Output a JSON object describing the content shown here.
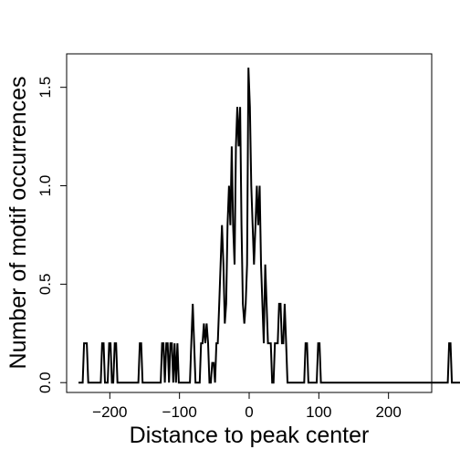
{
  "chart_data": {
    "type": "line",
    "title": "",
    "xlabel": "Distance to peak center",
    "ylabel": "Number of motif occurrences",
    "xlim": [
      -262,
      262
    ],
    "ylim": [
      -0.05,
      1.67
    ],
    "xticks": [
      -200,
      -100,
      0,
      100,
      200
    ],
    "yticks": [
      0.0,
      0.5,
      1.0,
      1.5
    ],
    "xtick_labels": [
      "−200",
      "−100",
      "0",
      "100",
      "200"
    ],
    "ytick_labels": [
      "0.0",
      "0.5",
      "1.0",
      "1.5"
    ],
    "grid": false,
    "legend": "none",
    "line_color": "#000000",
    "step": 2,
    "start_x": -245,
    "series": [
      {
        "values": [
          0,
          0,
          0,
          0,
          0.2,
          0.2,
          0.2,
          0,
          0,
          0,
          0,
          0,
          0,
          0,
          0,
          0,
          0,
          0.2,
          0.2,
          0,
          0,
          0,
          0.2,
          0.2,
          0,
          0,
          0.2,
          0.2,
          0,
          0,
          0,
          0,
          0,
          0,
          0,
          0,
          0,
          0,
          0,
          0,
          0,
          0,
          0,
          0,
          0.2,
          0.2,
          0,
          0,
          0,
          0,
          0,
          0,
          0,
          0,
          0,
          0,
          0,
          0,
          0,
          0,
          0.2,
          0.2,
          0,
          0.2,
          0.2,
          0,
          0.2,
          0.2,
          0,
          0.2,
          0,
          0.2,
          0,
          0,
          0,
          0,
          0,
          0,
          0,
          0,
          0,
          0.2,
          0.4,
          0.2,
          0,
          0,
          0,
          0,
          0.2,
          0.2,
          0.3,
          0.2,
          0.3,
          0.2,
          0,
          0,
          0.1,
          0.1,
          0,
          0.2,
          0.2,
          0.4,
          0.6,
          0.8,
          0.6,
          0.3,
          0.4,
          0.8,
          1.0,
          0.8,
          1.2,
          0.8,
          0.6,
          1.2,
          1.4,
          1.2,
          1.4,
          0.8,
          0.4,
          0.3,
          0.4,
          0.6,
          1.6,
          1.4,
          1.0,
          0.8,
          0.6,
          0.8,
          1.0,
          0.8,
          1.0,
          0.6,
          0.4,
          0.2,
          0.6,
          0.4,
          0.2,
          0.2,
          0.2,
          0,
          0,
          0.2,
          0.2,
          0.2,
          0.4,
          0.4,
          0.2,
          0.2,
          0.4,
          0.2,
          0,
          0,
          0,
          0,
          0,
          0,
          0,
          0,
          0,
          0,
          0,
          0,
          0,
          0.2,
          0.2,
          0,
          0,
          0,
          0,
          0,
          0,
          0,
          0.2,
          0.2,
          0,
          0,
          0,
          0,
          0,
          0,
          0,
          0,
          0,
          0,
          0,
          0,
          0,
          0,
          0,
          0,
          0,
          0,
          0,
          0,
          0,
          0,
          0,
          0,
          0,
          0,
          0,
          0,
          0,
          0,
          0,
          0,
          0,
          0,
          0,
          0,
          0,
          0,
          0,
          0,
          0,
          0,
          0,
          0,
          0,
          0,
          0,
          0,
          0,
          0,
          0,
          0,
          0,
          0,
          0,
          0,
          0,
          0,
          0,
          0,
          0,
          0,
          0,
          0,
          0,
          0,
          0,
          0,
          0,
          0,
          0,
          0,
          0,
          0,
          0,
          0,
          0,
          0,
          0,
          0,
          0,
          0,
          0,
          0,
          0,
          0,
          0,
          0,
          0,
          0,
          0,
          0,
          0.2,
          0.2,
          0,
          0,
          0,
          0,
          0,
          0,
          0,
          0
        ]
      }
    ]
  }
}
